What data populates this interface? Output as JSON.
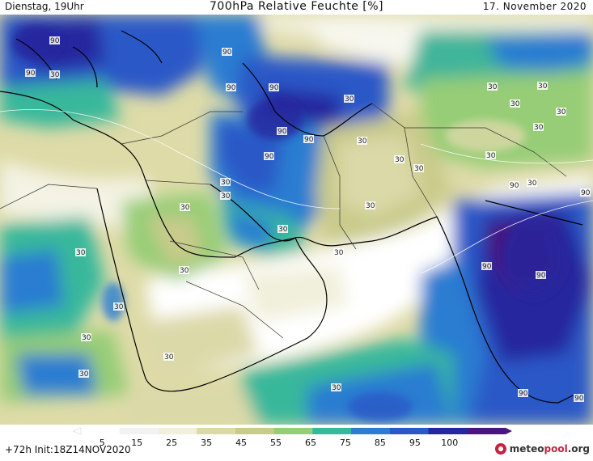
{
  "header": {
    "left": "Dienstag, 19Uhr",
    "title": "700hPa Relative Feuchte [%]",
    "right": "17. November 2020"
  },
  "footer": {
    "run_info": "+72h Init:18Z14NOV2020",
    "logo_main": "meteo",
    "logo_accent": "pool",
    "logo_suffix": ".org"
  },
  "legend": {
    "ticks": [
      "5",
      "15",
      "25",
      "35",
      "45",
      "55",
      "65",
      "75",
      "85",
      "95",
      "100"
    ],
    "colors": [
      "#ffffff",
      "#f2f2f2",
      "#f1f0dc",
      "#dcd9a9",
      "#c9cb8b",
      "#96cd76",
      "#38b89b",
      "#2a7dd1",
      "#2958c7",
      "#25279e",
      "#4a1580"
    ]
  },
  "contour_labels": [
    {
      "text": "90",
      "id": "label-90-aegean"
    },
    {
      "text": "90",
      "id": "label-90-west"
    },
    {
      "text": "30",
      "id": "label-30-aegean"
    },
    {
      "text": "90",
      "id": "label-90-caucasus"
    },
    {
      "text": "90",
      "id": "label-90-caspian-w"
    },
    {
      "text": "90",
      "id": "label-90-caspian-s"
    },
    {
      "text": "30",
      "id": "label-30-turkmen"
    },
    {
      "text": "90",
      "id": "label-90-iran-n"
    },
    {
      "text": "90",
      "id": "label-90-iran-c"
    },
    {
      "text": "90",
      "id": "label-90-zagros"
    },
    {
      "text": "30",
      "id": "label-30-afghan-e"
    },
    {
      "text": "30",
      "id": "label-30-afghan-c"
    },
    {
      "text": "30",
      "id": "label-30-pakistan-n"
    },
    {
      "text": "30",
      "id": "label-30-pakistan-c"
    },
    {
      "text": "30",
      "id": "label-30-baluchistan"
    },
    {
      "text": "30",
      "id": "label-30-central-asia-1"
    },
    {
      "text": "30",
      "id": "label-30-central-asia-2"
    },
    {
      "text": "30",
      "id": "label-30-central-asia-3"
    },
    {
      "text": "30",
      "id": "label-30-central-asia-4"
    },
    {
      "text": "30",
      "id": "label-30-tibet"
    },
    {
      "text": "30",
      "id": "label-30-himalaya"
    },
    {
      "text": "90",
      "id": "label-90-india-n"
    },
    {
      "text": "30",
      "id": "label-30-india-n"
    },
    {
      "text": "90",
      "id": "label-90-bangladesh"
    },
    {
      "text": "90",
      "id": "label-90-india-c"
    },
    {
      "text": "90",
      "id": "label-90-india-s"
    },
    {
      "text": "90",
      "id": "label-90-srilanka"
    },
    {
      "text": "90",
      "id": "label-90-bay-bengal"
    },
    {
      "text": "30",
      "id": "label-30-iraq"
    },
    {
      "text": "30",
      "id": "label-30-kuwait"
    },
    {
      "text": "30",
      "id": "label-30-qatar"
    },
    {
      "text": "30",
      "id": "label-30-oman-coast"
    },
    {
      "text": "30",
      "id": "label-30-saudi-n"
    },
    {
      "text": "30",
      "id": "label-30-saudi-c"
    },
    {
      "text": "30",
      "id": "label-30-red-sea"
    },
    {
      "text": "30",
      "id": "label-30-sudan"
    },
    {
      "text": "30",
      "id": "label-30-yemen"
    },
    {
      "text": "30",
      "id": "label-30-eritrea"
    },
    {
      "text": "30",
      "id": "label-30-arabian-sea"
    }
  ]
}
